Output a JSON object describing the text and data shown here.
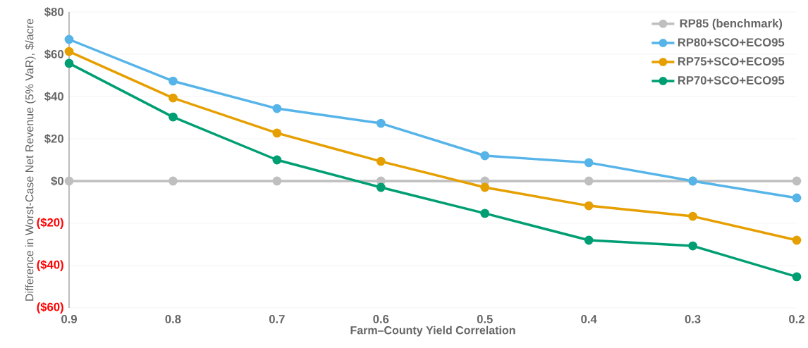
{
  "chart_data": {
    "type": "line",
    "xlabel": "Farm–County Yield Correlation",
    "ylabel": "Difference in Worst-Case Net Revenue  (5% VaR), $/acre",
    "x": [
      0.9,
      0.8,
      0.7,
      0.6,
      0.5,
      0.4,
      0.3,
      0.2
    ],
    "xlim": [
      0.9,
      0.2
    ],
    "xticks": [
      0.9,
      0.8,
      0.7,
      0.6,
      0.5,
      0.4,
      0.3,
      0.2
    ],
    "ylim": [
      -60,
      80
    ],
    "yticks": [
      {
        "value": -60,
        "label": "($60)"
      },
      {
        "value": -40,
        "label": "($40)"
      },
      {
        "value": -20,
        "label": "($20)"
      },
      {
        "value": 0,
        "label": "$0"
      },
      {
        "value": 20,
        "label": "$20"
      },
      {
        "value": 40,
        "label": "$40"
      },
      {
        "value": 60,
        "label": "$60"
      },
      {
        "value": 80,
        "label": "$80"
      }
    ],
    "grid": "y",
    "legend": "top right",
    "marker": "circle",
    "line_style": "solid",
    "series": [
      {
        "name": "RP85 (benchmark)",
        "color": "#bfbfbf",
        "values": [
          0,
          0,
          0,
          0,
          0,
          0,
          0,
          0
        ]
      },
      {
        "name": "RP80+SCO+ECO95",
        "color": "#56b4e9",
        "values": [
          67,
          47.3,
          34.3,
          27.3,
          12,
          8.7,
          0,
          -8
        ]
      },
      {
        "name": "RP75+SCO+ECO95",
        "color": "#e69f00",
        "values": [
          61.3,
          39.3,
          22.7,
          9.3,
          -3,
          -11.7,
          -16.7,
          -28
        ]
      },
      {
        "name": "RP70+SCO+ECO95",
        "color": "#009e73",
        "values": [
          55.7,
          30.3,
          10,
          -3,
          -15.3,
          -28,
          -30.7,
          -45.3
        ]
      }
    ]
  }
}
